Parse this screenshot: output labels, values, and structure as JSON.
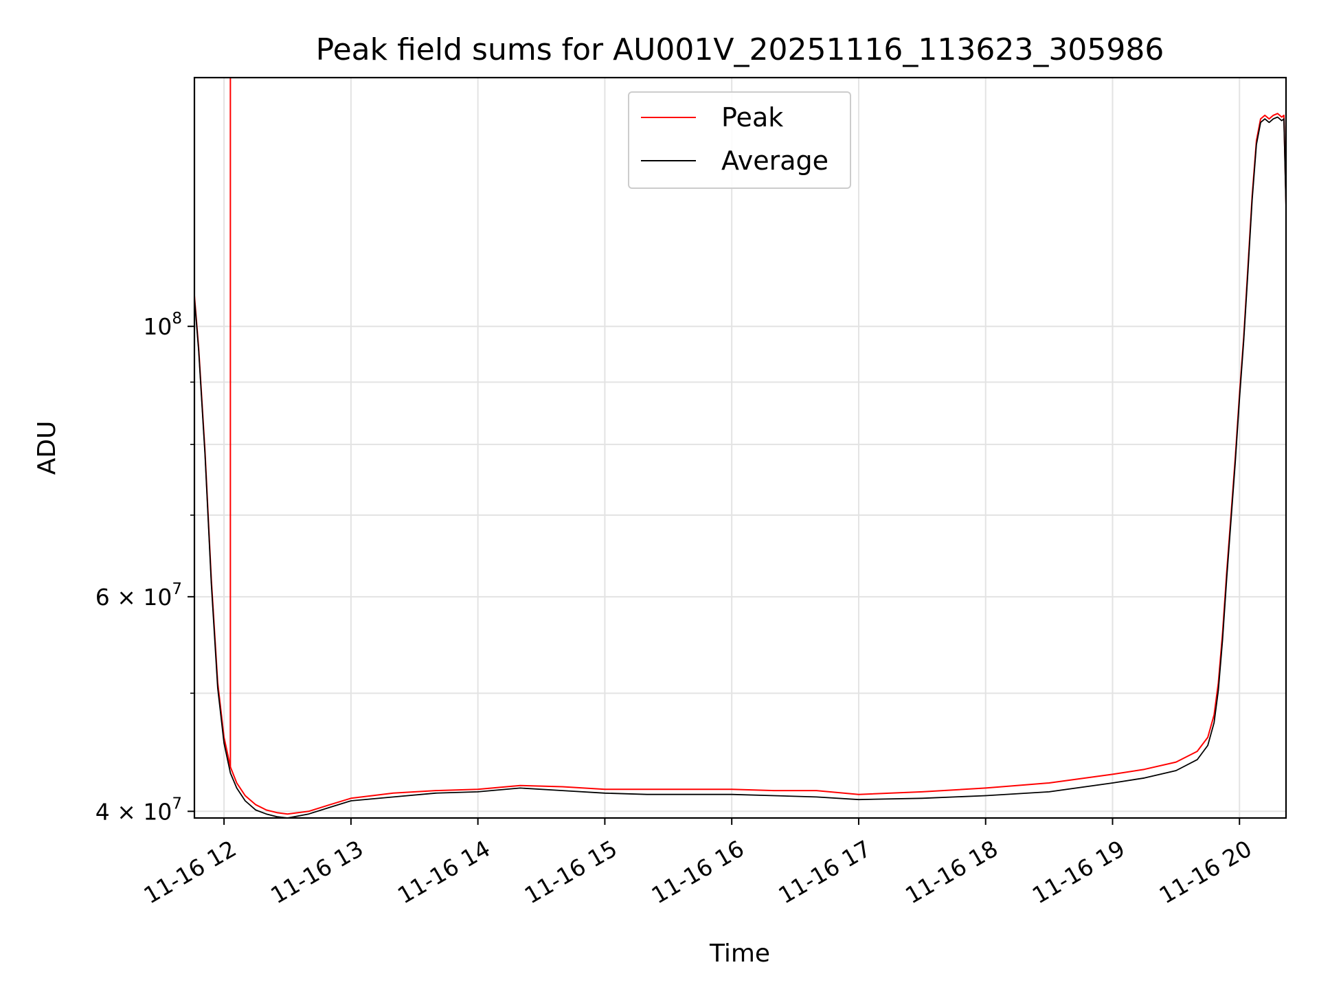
{
  "chart_data": {
    "type": "line",
    "title": "Peak field sums for AU001V_20251116_113623_305986",
    "xlabel": "Time",
    "ylabel": "ADU",
    "y_scale": "log",
    "grid": true,
    "legend_position": "upper center",
    "x_ticks": [
      "11-16 12",
      "11-16 13",
      "11-16 14",
      "11-16 15",
      "11-16 16",
      "11-16 17",
      "11-16 18",
      "11-16 19",
      "11-16 20"
    ],
    "y_ticks": [
      {
        "value": 40000000,
        "label": "4 × 10",
        "exp": "7"
      },
      {
        "value": 60000000,
        "label": "6 × 10",
        "exp": "7"
      },
      {
        "value": 100000000,
        "label": "10",
        "exp": "8"
      }
    ],
    "xlim": [
      "2025-11-16 11:46",
      "2025-11-16 20:22"
    ],
    "ylim": [
      39500000,
      160000000
    ],
    "series": [
      {
        "name": "Peak",
        "color": "#ff0000",
        "time": [
          "11:46",
          "11:48",
          "11:51",
          "11:54",
          "11:57",
          "12:00",
          "12:03",
          "12:06",
          "12:10",
          "12:15",
          "12:20",
          "12:25",
          "12:30",
          "12:40",
          "12:50",
          "13:00",
          "13:20",
          "13:40",
          "14:00",
          "14:20",
          "14:40",
          "15:00",
          "15:20",
          "15:40",
          "16:00",
          "16:20",
          "16:40",
          "17:00",
          "17:30",
          "18:00",
          "18:30",
          "19:00",
          "19:15",
          "19:30",
          "19:40",
          "19:45",
          "19:48",
          "19:50",
          "19:52",
          "19:54",
          "19:56",
          "19:58",
          "20:00",
          "20:02",
          "20:04",
          "20:06",
          "20:08",
          "20:10",
          "20:12",
          "20:14",
          "20:16",
          "20:18",
          "20:20",
          "20:21",
          "20:22"
        ],
        "values": [
          106000000,
          96000000,
          79000000,
          62000000,
          51000000,
          46000000,
          43500000,
          42200000,
          41200000,
          40500000,
          40100000,
          39900000,
          39800000,
          40000000,
          40500000,
          41000000,
          41400000,
          41600000,
          41700000,
          42000000,
          41900000,
          41700000,
          41700000,
          41700000,
          41700000,
          41600000,
          41600000,
          41300000,
          41500000,
          41800000,
          42200000,
          42900000,
          43300000,
          43900000,
          44800000,
          46000000,
          48000000,
          51000000,
          56000000,
          63000000,
          70000000,
          78000000,
          88000000,
          98000000,
          112000000,
          128000000,
          142000000,
          148000000,
          149000000,
          148000000,
          149000000,
          149500000,
          148500000,
          149000000,
          126000000
        ]
      },
      {
        "name": "Average",
        "color": "#000000",
        "time": [
          "11:46",
          "11:48",
          "11:51",
          "11:54",
          "11:57",
          "12:00",
          "12:03",
          "12:06",
          "12:10",
          "12:15",
          "12:20",
          "12:25",
          "12:30",
          "12:40",
          "12:50",
          "13:00",
          "13:20",
          "13:40",
          "14:00",
          "14:20",
          "14:40",
          "15:00",
          "15:20",
          "15:40",
          "16:00",
          "16:20",
          "16:40",
          "17:00",
          "17:30",
          "18:00",
          "18:30",
          "19:00",
          "19:15",
          "19:30",
          "19:40",
          "19:45",
          "19:48",
          "19:50",
          "19:52",
          "19:54",
          "19:56",
          "19:58",
          "20:00",
          "20:02",
          "20:04",
          "20:06",
          "20:08",
          "20:10",
          "20:12",
          "20:14",
          "20:16",
          "20:18",
          "20:20",
          "20:21",
          "20:22"
        ],
        "values": [
          105500000,
          95500000,
          78500000,
          61500000,
          50500000,
          45500000,
          43000000,
          41800000,
          40800000,
          40100000,
          39800000,
          39600000,
          39500000,
          39800000,
          40300000,
          40800000,
          41100000,
          41400000,
          41500000,
          41800000,
          41600000,
          41400000,
          41300000,
          41300000,
          41300000,
          41200000,
          41100000,
          40900000,
          41000000,
          41200000,
          41500000,
          42200000,
          42600000,
          43200000,
          44100000,
          45300000,
          47300000,
          50300000,
          55300000,
          62300000,
          69300000,
          77300000,
          87300000,
          97300000,
          111000000,
          127000000,
          141000000,
          147000000,
          148000000,
          147000000,
          148000000,
          148500000,
          147500000,
          148000000,
          125000000
        ]
      }
    ],
    "annotations": [
      {
        "series": "Peak",
        "type": "spike",
        "time": "12:03",
        "value": 160000000
      }
    ]
  }
}
